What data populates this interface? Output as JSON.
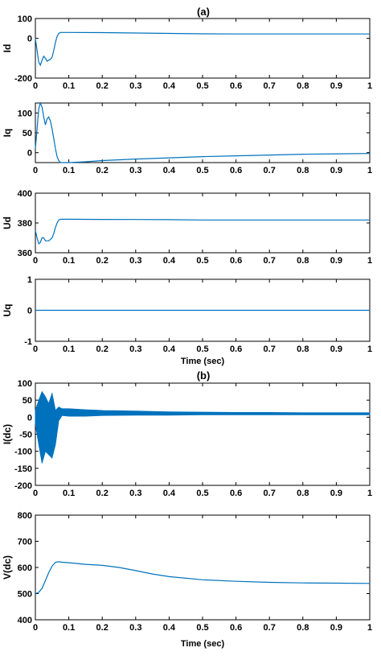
{
  "panel_titles": {
    "a": "(a)",
    "b": "(b)"
  },
  "chart_data": [
    {
      "type": "line",
      "ylabel": "Id",
      "xlabel": "",
      "xlim": [
        0,
        1
      ],
      "ylim": [
        -200,
        100
      ],
      "xticks": [
        "0",
        "0.1",
        "0.2",
        "0.3",
        "0.4",
        "0.5",
        "0.6",
        "0.7",
        "0.8",
        "0.9",
        "1"
      ],
      "yticks": [
        "-200",
        "0",
        "100"
      ],
      "ytick_values": [
        -200,
        0,
        100
      ],
      "x": [
        0,
        0.005,
        0.01,
        0.015,
        0.02,
        0.025,
        0.03,
        0.035,
        0.04,
        0.045,
        0.05,
        0.055,
        0.06,
        0.065,
        0.07,
        0.075,
        0.08,
        0.09,
        0.1,
        0.2,
        0.3,
        0.4,
        0.5,
        0.6,
        0.7,
        0.8,
        0.9,
        1.0
      ],
      "y": [
        0,
        -60,
        -120,
        -135,
        -110,
        -90,
        -100,
        -115,
        -110,
        -105,
        -95,
        -60,
        -20,
        10,
        25,
        30,
        30,
        30,
        30,
        29,
        27,
        25,
        23,
        22,
        22,
        22,
        22,
        22
      ],
      "color": "#0072BD"
    },
    {
      "type": "line",
      "ylabel": "Iq",
      "xlabel": "",
      "xlim": [
        0,
        1
      ],
      "ylim": [
        -25,
        125
      ],
      "xticks": [
        "0",
        "0.1",
        "0.2",
        "0.3",
        "0.4",
        "0.5",
        "0.6",
        "0.7",
        "0.8",
        "0.9",
        "1"
      ],
      "yticks": [
        "0",
        "50",
        "100"
      ],
      "ytick_values": [
        0,
        50,
        100
      ],
      "x": [
        0,
        0.005,
        0.01,
        0.015,
        0.02,
        0.025,
        0.03,
        0.035,
        0.04,
        0.045,
        0.05,
        0.055,
        0.06,
        0.065,
        0.07,
        0.075,
        0.08,
        0.09,
        0.1,
        0.15,
        0.2,
        0.3,
        0.4,
        0.5,
        0.6,
        0.7,
        0.8,
        0.9,
        1.0
      ],
      "y": [
        10,
        60,
        110,
        125,
        115,
        90,
        70,
        85,
        90,
        80,
        60,
        35,
        10,
        -10,
        -20,
        -25,
        -25,
        -25,
        -25,
        -23,
        -20,
        -16,
        -13,
        -10,
        -8,
        -6,
        -4,
        -3,
        -2
      ],
      "color": "#0072BD"
    },
    {
      "type": "line",
      "ylabel": "Ud",
      "xlabel": "",
      "xlim": [
        0,
        1
      ],
      "ylim": [
        360,
        400
      ],
      "xticks": [
        "0",
        "0.1",
        "0.2",
        "0.3",
        "0.4",
        "0.5",
        "0.6",
        "0.7",
        "0.8",
        "0.9",
        "1"
      ],
      "yticks": [
        "360",
        "380",
        "400"
      ],
      "ytick_values": [
        360,
        380,
        400
      ],
      "x": [
        0,
        0.005,
        0.01,
        0.015,
        0.02,
        0.025,
        0.03,
        0.035,
        0.04,
        0.045,
        0.05,
        0.055,
        0.06,
        0.065,
        0.07,
        0.075,
        0.08,
        0.09,
        0.1,
        0.2,
        0.3,
        0.4,
        0.5,
        0.6,
        0.7,
        0.8,
        0.9,
        1.0
      ],
      "y": [
        375,
        370,
        366,
        367,
        370,
        370,
        368,
        368,
        368,
        369,
        370,
        373,
        377,
        380,
        382,
        382.5,
        382.5,
        382.5,
        382.5,
        382.4,
        382.3,
        382.2,
        382,
        382,
        382,
        382,
        382,
        382
      ],
      "color": "#0072BD"
    },
    {
      "type": "line",
      "ylabel": "Uq",
      "xlabel": "Time (sec)",
      "xlim": [
        0,
        1
      ],
      "ylim": [
        -1,
        1
      ],
      "xticks": [
        "0",
        "0.1",
        "0.2",
        "0.3",
        "0.4",
        "0.5",
        "0.6",
        "0.7",
        "0.8",
        "0.9",
        "1"
      ],
      "yticks": [
        "-1",
        "0",
        "1"
      ],
      "ytick_values": [
        -1,
        0,
        1
      ],
      "x": [
        0,
        1
      ],
      "y": [
        0,
        0
      ],
      "color": "#0072BD"
    },
    {
      "type": "line",
      "ylabel": "I(dc)",
      "xlabel": "",
      "xlim": [
        0,
        1
      ],
      "ylim": [
        -200,
        100
      ],
      "xticks": [
        "0",
        "0.1",
        "0.2",
        "0.3",
        "0.4",
        "0.5",
        "0.6",
        "0.7",
        "0.8",
        "0.9",
        "1"
      ],
      "yticks": [
        "-200",
        "-150",
        "-100",
        "-50",
        "0",
        "50",
        "100"
      ],
      "ytick_values": [
        -200,
        -150,
        -100,
        -50,
        0,
        50,
        100
      ],
      "envelope": {
        "x": [
          0,
          0.01,
          0.02,
          0.03,
          0.04,
          0.05,
          0.06,
          0.07,
          0.08,
          0.1,
          0.15,
          0.2,
          0.3,
          0.4,
          0.5,
          0.6,
          0.7,
          0.8,
          0.9,
          1.0
        ],
        "upper": [
          20,
          50,
          75,
          60,
          40,
          70,
          20,
          30,
          25,
          25,
          22,
          20,
          18,
          16,
          15,
          14,
          14,
          13,
          13,
          13
        ],
        "lower": [
          -20,
          -80,
          -135,
          -100,
          -110,
          -120,
          -80,
          -10,
          5,
          3,
          3,
          5,
          6,
          6,
          7,
          7,
          7,
          7,
          7,
          7
        ]
      },
      "color": "#0072BD"
    },
    {
      "type": "line",
      "ylabel": "V(dc)",
      "xlabel": "Time (sec)",
      "xlim": [
        0,
        1
      ],
      "ylim": [
        400,
        800
      ],
      "xticks": [
        "0",
        "0.1",
        "0.2",
        "0.3",
        "0.4",
        "0.5",
        "0.6",
        "0.7",
        "0.8",
        "0.9",
        "1"
      ],
      "yticks": [
        "400",
        "500",
        "600",
        "700",
        "800"
      ],
      "ytick_values": [
        400,
        500,
        600,
        700,
        800
      ],
      "x": [
        0,
        0.01,
        0.02,
        0.03,
        0.04,
        0.05,
        0.06,
        0.07,
        0.08,
        0.1,
        0.15,
        0.2,
        0.25,
        0.3,
        0.35,
        0.4,
        0.5,
        0.6,
        0.7,
        0.8,
        0.9,
        1.0
      ],
      "y": [
        500,
        505,
        520,
        550,
        580,
        605,
        620,
        622,
        620,
        618,
        612,
        608,
        600,
        588,
        575,
        565,
        553,
        547,
        543,
        541,
        540,
        539
      ],
      "color": "#0072BD"
    }
  ]
}
